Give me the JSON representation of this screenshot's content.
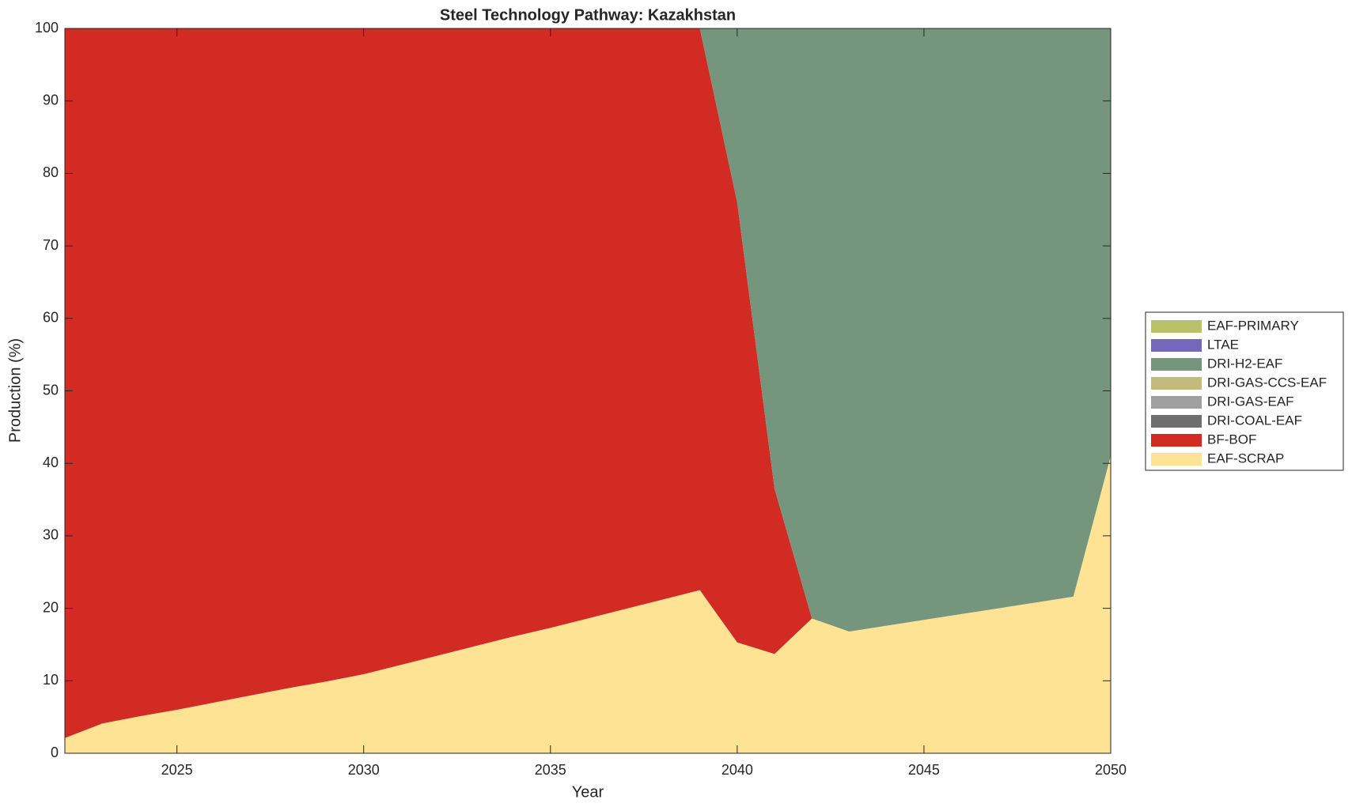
{
  "chart_data": {
    "type": "stacked_area",
    "title": "Steel Technology Pathway: Kazakhstan",
    "x_label": "Year",
    "y_label": "Production (%)",
    "x": [
      2022,
      2023,
      2024,
      2025,
      2026,
      2027,
      2028,
      2029,
      2030,
      2031,
      2032,
      2033,
      2034,
      2035,
      2036,
      2037,
      2038,
      2039,
      2040,
      2041,
      2042,
      2043,
      2044,
      2045,
      2046,
      2047,
      2048,
      2049,
      2050
    ],
    "series": [
      {
        "name": "EAF-SCRAP",
        "color": "#fde393",
        "values": [
          2.1,
          4.1,
          5.1,
          6.0,
          7.0,
          8.0,
          9.0,
          9.9,
          10.9,
          12.2,
          13.5,
          14.8,
          16.1,
          17.3,
          18.6,
          19.9,
          21.2,
          22.5,
          15.3,
          13.7,
          18.6,
          16.8,
          17.6,
          18.4,
          19.2,
          20.0,
          20.8,
          21.6,
          41.0
        ]
      },
      {
        "name": "BF-BOF",
        "color": "#d22b24",
        "values": [
          97.9,
          95.9,
          94.9,
          94.0,
          93.0,
          92.0,
          91.0,
          90.1,
          89.1,
          87.8,
          86.5,
          85.2,
          83.9,
          82.7,
          81.4,
          80.1,
          78.8,
          77.5,
          60.7,
          22.8,
          0,
          0,
          0,
          0,
          0,
          0,
          0,
          0,
          0
        ]
      },
      {
        "name": "DRI-COAL-EAF",
        "color": "#6e6e6e",
        "values": [
          0,
          0,
          0,
          0,
          0,
          0,
          0,
          0,
          0,
          0,
          0,
          0,
          0,
          0,
          0,
          0,
          0,
          0,
          0,
          0,
          0,
          0,
          0,
          0,
          0,
          0,
          0,
          0,
          0
        ]
      },
      {
        "name": "DRI-GAS-EAF",
        "color": "#a0a0a0",
        "values": [
          0,
          0,
          0,
          0,
          0,
          0,
          0,
          0,
          0,
          0,
          0,
          0,
          0,
          0,
          0,
          0,
          0,
          0,
          0,
          0,
          0,
          0,
          0,
          0,
          0,
          0,
          0,
          0,
          0
        ]
      },
      {
        "name": "DRI-GAS-CCS-EAF",
        "color": "#c4ba7e",
        "values": [
          0,
          0,
          0,
          0,
          0,
          0,
          0,
          0,
          0,
          0,
          0,
          0,
          0,
          0,
          0,
          0,
          0,
          0,
          0,
          0,
          0,
          0,
          0,
          0,
          0,
          0,
          0,
          0,
          0
        ]
      },
      {
        "name": "DRI-H2-EAF",
        "color": "#75967c",
        "values": [
          0,
          0,
          0,
          0,
          0,
          0,
          0,
          0,
          0,
          0,
          0,
          0,
          0,
          0,
          0,
          0,
          0,
          0,
          24.0,
          63.5,
          81.4,
          83.2,
          82.4,
          81.6,
          80.8,
          80.0,
          79.2,
          78.4,
          59.0
        ]
      },
      {
        "name": "LTAE",
        "color": "#7468bd",
        "values": [
          0,
          0,
          0,
          0,
          0,
          0,
          0,
          0,
          0,
          0,
          0,
          0,
          0,
          0,
          0,
          0,
          0,
          0,
          0,
          0,
          0,
          0,
          0,
          0,
          0,
          0,
          0,
          0,
          0
        ]
      },
      {
        "name": "EAF-PRIMARY",
        "color": "#b9c26a",
        "values": [
          0,
          0,
          0,
          0,
          0,
          0,
          0,
          0,
          0,
          0,
          0,
          0,
          0,
          0,
          0,
          0,
          0,
          0,
          0,
          0,
          0,
          0,
          0,
          0,
          0,
          0,
          0,
          0,
          0
        ]
      }
    ],
    "xlim": [
      2022,
      2050
    ],
    "xticks": [
      2025,
      2030,
      2035,
      2040,
      2045,
      2050
    ],
    "ylim": [
      0,
      100
    ],
    "yticks": [
      0,
      10,
      20,
      30,
      40,
      50,
      60,
      70,
      80,
      90,
      100
    ],
    "legend": "right"
  }
}
